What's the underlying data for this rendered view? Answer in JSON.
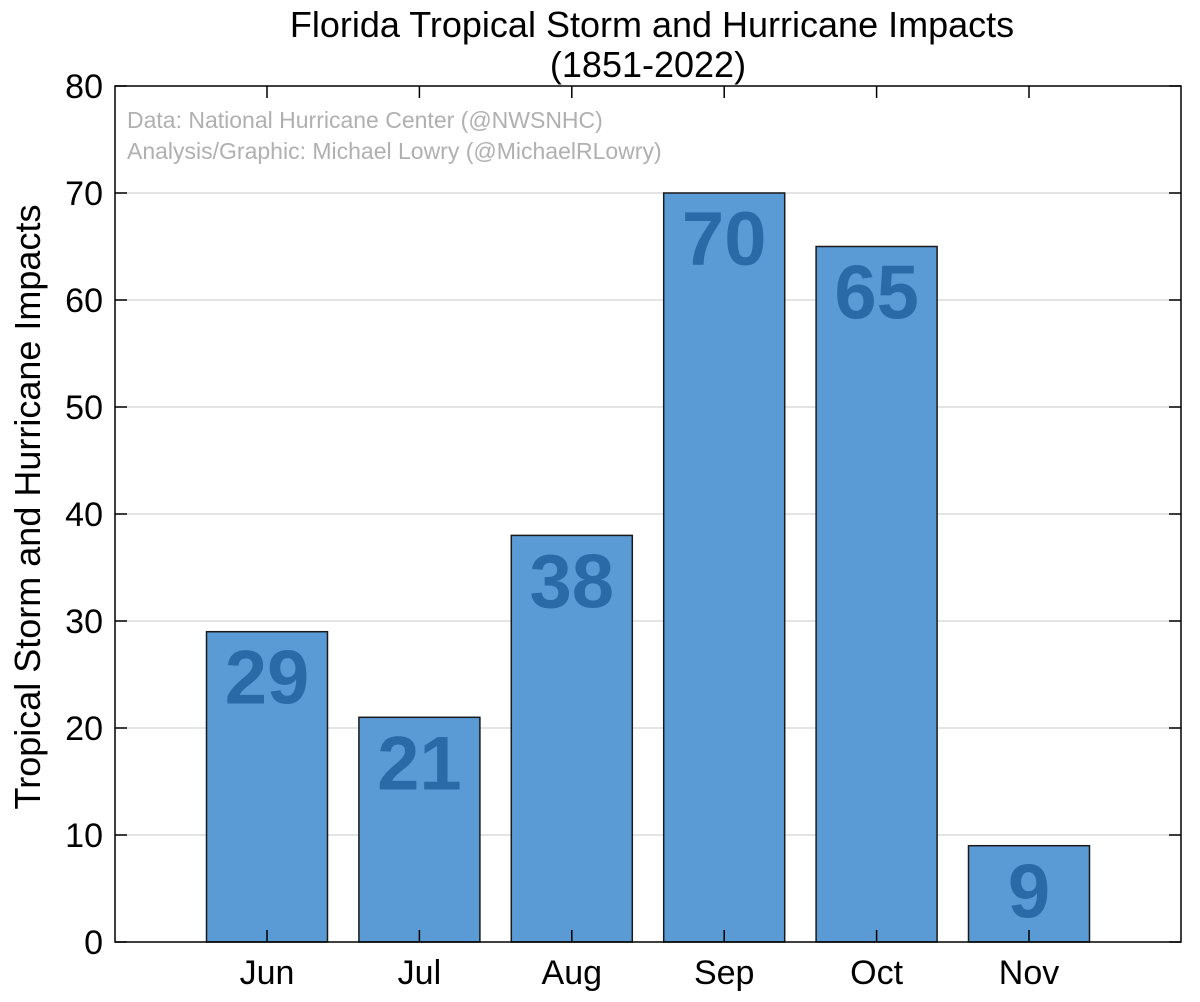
{
  "chart_data": {
    "type": "bar",
    "title": "Florida Tropical Storm and Hurricane Impacts",
    "subtitle": "(1851-2022)",
    "xlabel": "",
    "ylabel": "Tropical Storm and Hurricane Impacts",
    "categories": [
      "Jun",
      "Jul",
      "Aug",
      "Sep",
      "Oct",
      "Nov"
    ],
    "values": [
      29,
      21,
      38,
      70,
      65,
      9
    ],
    "value_labels": [
      "29",
      "21",
      "38",
      "70",
      "65",
      "9"
    ],
    "ylim": [
      0,
      80
    ],
    "yticks": [
      0,
      10,
      20,
      30,
      40,
      50,
      60,
      70,
      80
    ],
    "ytick_labels": [
      "0",
      "10",
      "20",
      "30",
      "40",
      "50",
      "60",
      "70",
      "80"
    ],
    "grid": true,
    "annotations": [
      "Data: National Hurricane Center (@NWSNHC)",
      "Analysis/Graphic: Michael Lowry (@MichaelRLowry)"
    ],
    "colors": {
      "bar": "#5b9bd5",
      "bar_edge": "#1a1a1a",
      "value_text": "#2a6aa6",
      "grid": "#dcdcdc",
      "credit_text": "#b0b0b0"
    }
  }
}
